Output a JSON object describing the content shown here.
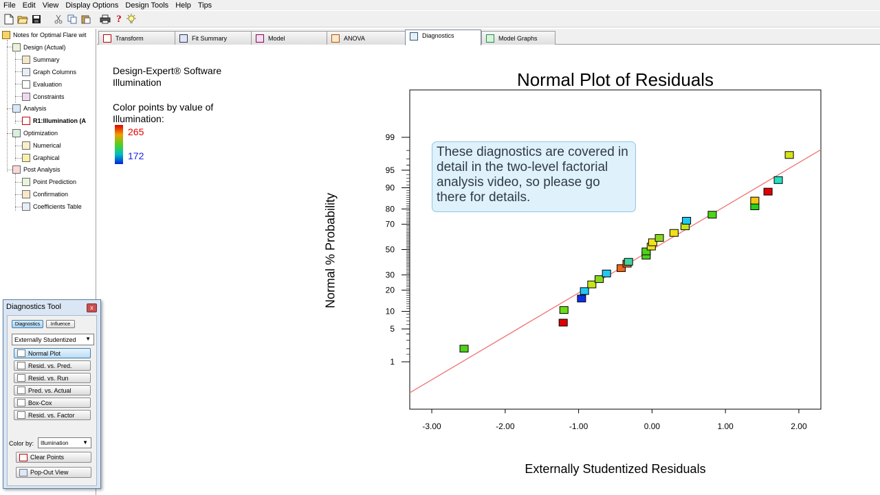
{
  "menu": [
    "File",
    "Edit",
    "View",
    "Display Options",
    "Design Tools",
    "Help",
    "Tips"
  ],
  "toolbar_icons": [
    "new-file-icon",
    "open-folder-icon",
    "save-icon",
    "cut-icon",
    "copy-icon",
    "paste-icon",
    "print-icon",
    "help-icon",
    "tip-lightbulb-icon"
  ],
  "tree": {
    "root": "Notes for Optimal Flare wit",
    "design": "Design (Actual)",
    "summary": "Summary",
    "graph_columns": "Graph Columns",
    "evaluation": "Evaluation",
    "constraints": "Constraints",
    "analysis": "Analysis",
    "response": "R1:Illumination (A",
    "optimization": "Optimization",
    "numerical": "Numerical",
    "graphical": "Graphical",
    "post_analysis": "Post Analysis",
    "point_prediction": "Point Prediction",
    "confirmation": "Confirmation",
    "coefficients_table": "Coefficients Table"
  },
  "tabs": [
    "Transform",
    "Fit Summary",
    "Model",
    "ANOVA",
    "Diagnostics",
    "Model Graphs"
  ],
  "info": {
    "software": "Design-Expert® Software",
    "response": "Illumination",
    "color_caption_1": "Color points by value of",
    "color_caption_2": "Illumination:",
    "color_max": "265",
    "color_min": "172"
  },
  "callout": "These diagnostics are covered in detail in the two-level factorial analysis video, so please go there for details.",
  "diagnostics_tool": {
    "title": "Diagnostics Tool",
    "close": "x",
    "tab_diagnostics": "Diagnostics",
    "tab_influence": "Influence",
    "residual_type": "Externally Studentized",
    "plots": [
      "Normal Plot",
      "Resid. vs. Pred.",
      "Resid. vs. Run",
      "Pred. vs. Actual",
      "Box-Cox",
      "Resid. vs. Factor"
    ],
    "color_by_label": "Color by:",
    "color_by_value": "Illumination",
    "clear_points": "Clear Points",
    "pop_out": "Pop-Out View"
  },
  "chart_data": {
    "type": "scatter",
    "title": "Normal Plot of Residuals",
    "xlabel": "Externally Studentized Residuals",
    "ylabel": "Normal % Probability",
    "xlim": [
      -3.3,
      2.3
    ],
    "x_ticks": [
      -3,
      -2,
      -1,
      0,
      1,
      2
    ],
    "x_tick_labels": [
      "-3.00",
      "-2.00",
      "-1.00",
      "0.00",
      "1.00",
      "2.00"
    ],
    "y_scale": "normal-probability",
    "y_ticks": [
      1,
      5,
      10,
      20,
      30,
      50,
      70,
      80,
      90,
      95,
      99
    ],
    "y_tick_labels": [
      "1",
      "5",
      "10",
      "20",
      "30",
      "50",
      "70",
      "80",
      "90",
      "95",
      "99"
    ],
    "reference_line": {
      "color": "#f07070"
    },
    "colorbar": {
      "min": 172,
      "max": 265
    },
    "points": [
      {
        "x": -2.56,
        "y": 2.0,
        "color": "#4fd21a"
      },
      {
        "x": -1.21,
        "y": 6.5,
        "color": "#e00000"
      },
      {
        "x": -1.2,
        "y": 10.5,
        "color": "#6ade16"
      },
      {
        "x": -0.96,
        "y": 15.5,
        "color": "#1030e8"
      },
      {
        "x": -0.92,
        "y": 19.5,
        "color": "#22c8f0"
      },
      {
        "x": -0.82,
        "y": 23.5,
        "color": "#c6e41c"
      },
      {
        "x": -0.72,
        "y": 27.0,
        "color": "#8ad81c"
      },
      {
        "x": -0.62,
        "y": 31.0,
        "color": "#22c8f0"
      },
      {
        "x": -0.42,
        "y": 35.0,
        "color": "#f0681a"
      },
      {
        "x": -0.34,
        "y": 38.5,
        "color": "#ea6a2c"
      },
      {
        "x": -0.32,
        "y": 40.0,
        "color": "#40d6a0"
      },
      {
        "x": -0.08,
        "y": 45.0,
        "color": "#4fd21a"
      },
      {
        "x": -0.08,
        "y": 48.5,
        "color": "#4fd21a"
      },
      {
        "x": -0.01,
        "y": 52.5,
        "color": "#f0e01c"
      },
      {
        "x": 0.01,
        "y": 56.0,
        "color": "#f2e21c"
      },
      {
        "x": 0.1,
        "y": 59.5,
        "color": "#8ad81c"
      },
      {
        "x": 0.3,
        "y": 63.5,
        "color": "#f0e01c"
      },
      {
        "x": 0.45,
        "y": 68.5,
        "color": "#c6e41c"
      },
      {
        "x": 0.47,
        "y": 72.5,
        "color": "#22c8f0"
      },
      {
        "x": 0.82,
        "y": 76.5,
        "color": "#4fd21a"
      },
      {
        "x": 1.4,
        "y": 81.5,
        "color": "#22d21a"
      },
      {
        "x": 1.4,
        "y": 84.5,
        "color": "#f0c810"
      },
      {
        "x": 1.58,
        "y": 88.5,
        "color": "#e00000"
      },
      {
        "x": 1.72,
        "y": 92.5,
        "color": "#22e0c0"
      },
      {
        "x": 1.87,
        "y": 97.5,
        "color": "#d4e418"
      }
    ]
  }
}
